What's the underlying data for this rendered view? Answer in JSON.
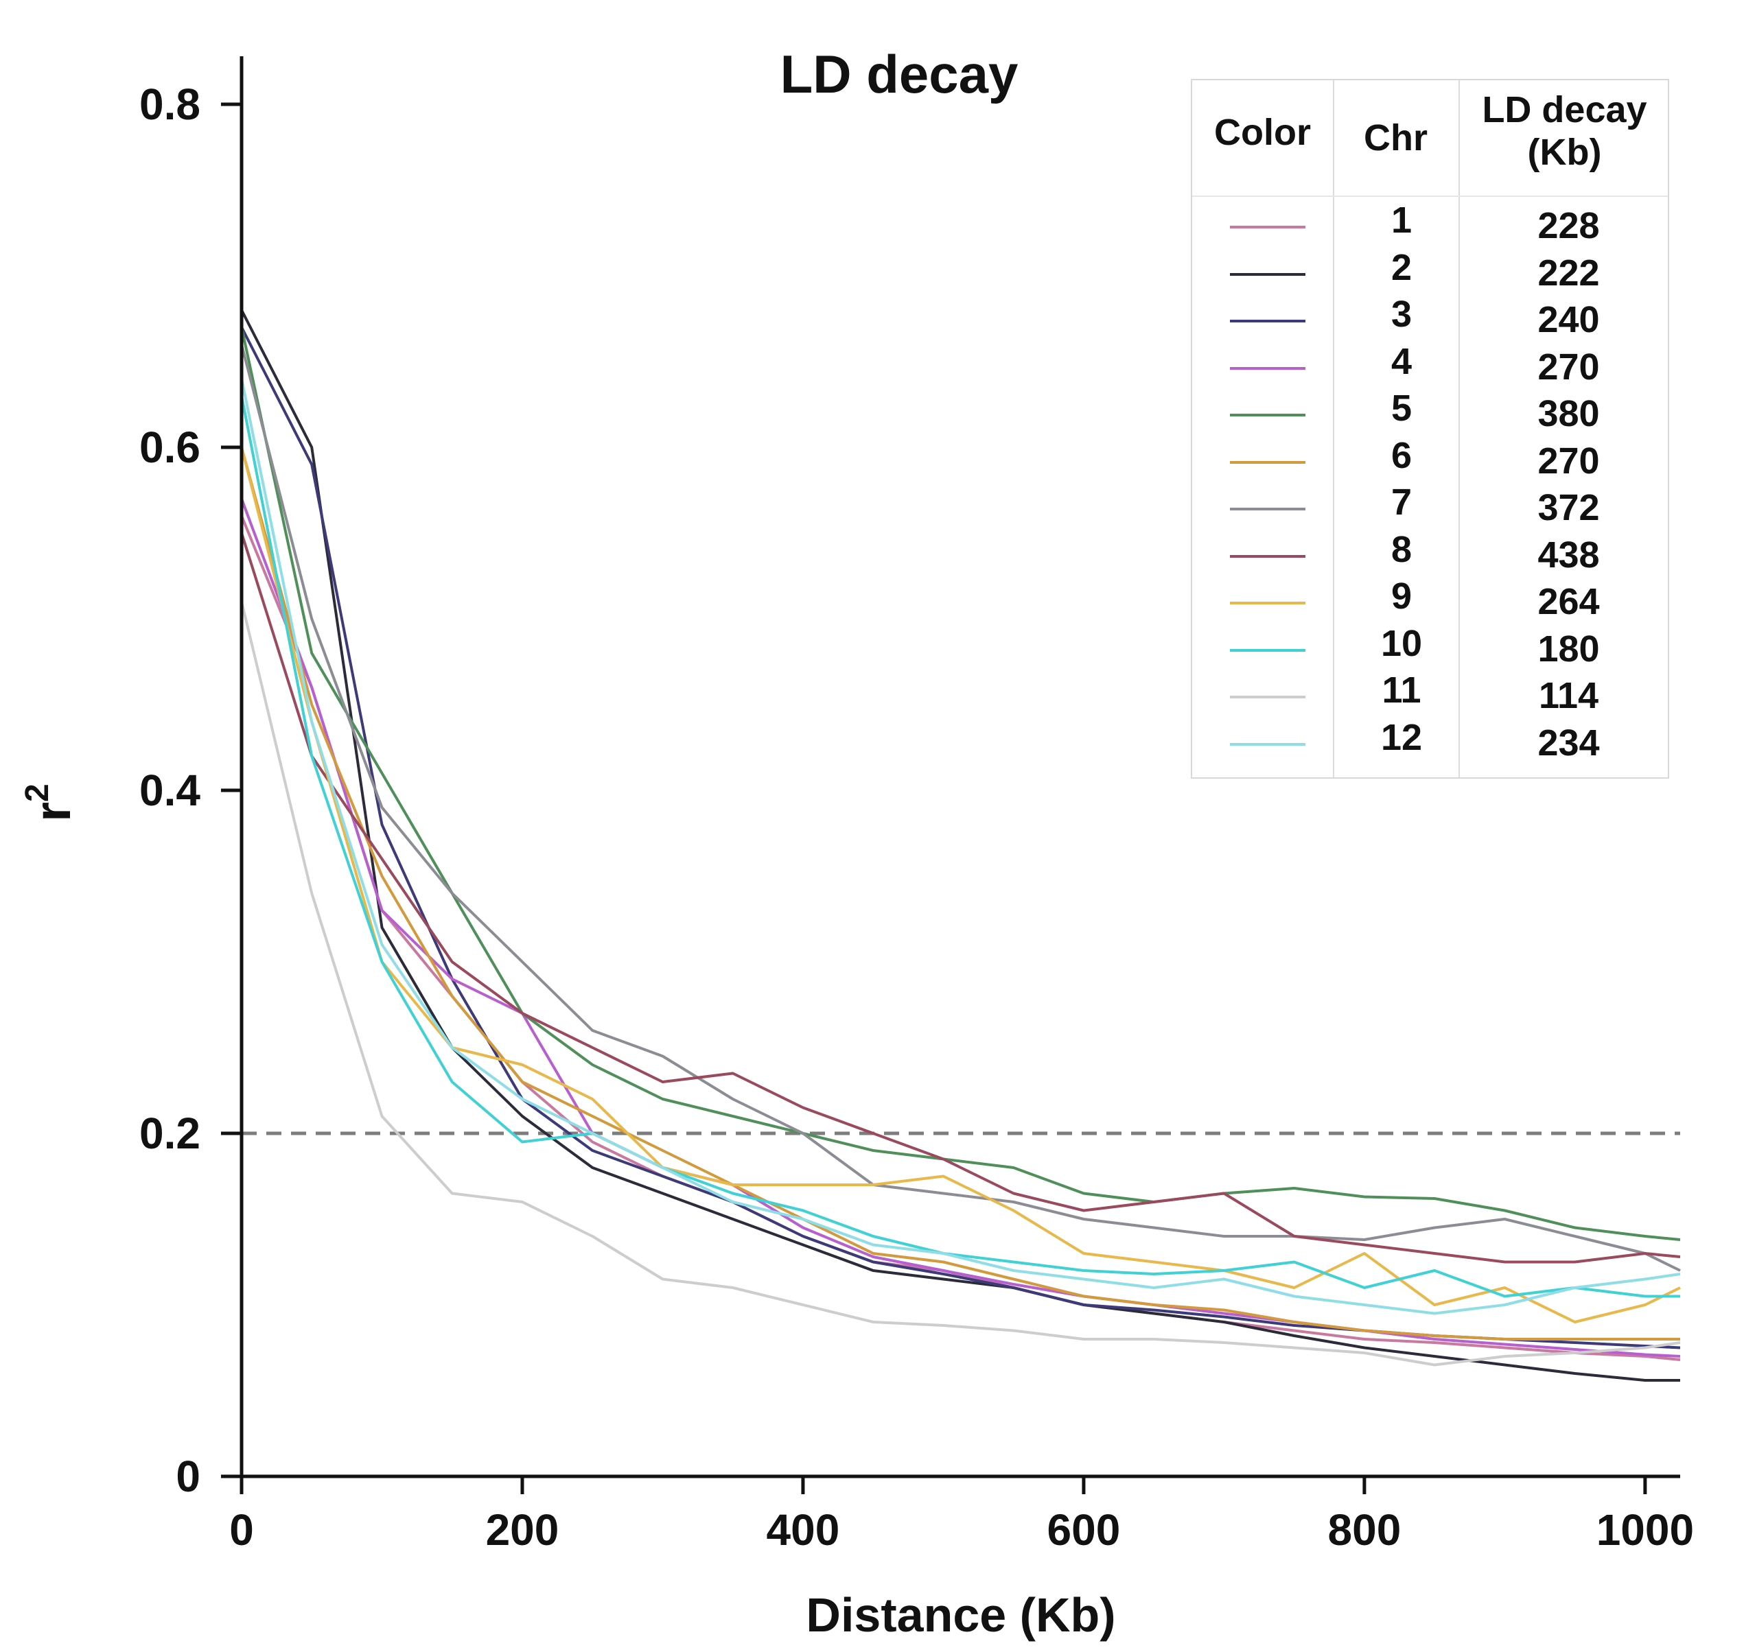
{
  "chart_data": {
    "type": "line",
    "title": "LD decay",
    "xlabel": "Distance (Kb)",
    "ylabel": "r",
    "ylabel_superscript": "2",
    "xlim": [
      0,
      1025
    ],
    "ylim": [
      0,
      0.8
    ],
    "x_ticks": [
      "0",
      "200",
      "400",
      "600",
      "800",
      "1000"
    ],
    "y_ticks": [
      "0",
      "0.2",
      "0.4",
      "0.6",
      "0.8"
    ],
    "threshold": 0.2,
    "x": [
      0,
      50,
      100,
      150,
      200,
      250,
      300,
      350,
      400,
      450,
      500,
      550,
      600,
      650,
      700,
      750,
      800,
      850,
      900,
      950,
      1000,
      1025
    ],
    "series": [
      {
        "name": "1",
        "color": "#c9799f",
        "values": [
          0.56,
          0.46,
          0.33,
          0.28,
          0.23,
          0.195,
          0.175,
          0.16,
          0.14,
          0.125,
          0.12,
          0.11,
          0.1,
          0.095,
          0.09,
          0.085,
          0.08,
          0.078,
          0.075,
          0.072,
          0.07,
          0.068
        ]
      },
      {
        "name": "2",
        "color": "#2b2b3a",
        "values": [
          0.68,
          0.6,
          0.32,
          0.25,
          0.21,
          0.18,
          0.165,
          0.15,
          0.135,
          0.12,
          0.115,
          0.11,
          0.1,
          0.095,
          0.09,
          0.082,
          0.075,
          0.07,
          0.065,
          0.06,
          0.056,
          0.056
        ]
      },
      {
        "name": "3",
        "color": "#3d3a7a",
        "values": [
          0.67,
          0.59,
          0.38,
          0.29,
          0.22,
          0.19,
          0.175,
          0.16,
          0.14,
          0.125,
          0.118,
          0.11,
          0.1,
          0.097,
          0.093,
          0.088,
          0.085,
          0.082,
          0.08,
          0.078,
          0.076,
          0.075
        ]
      },
      {
        "name": "4",
        "color": "#b85fd0",
        "values": [
          0.57,
          0.46,
          0.33,
          0.29,
          0.27,
          0.2,
          0.18,
          0.17,
          0.145,
          0.128,
          0.12,
          0.112,
          0.105,
          0.1,
          0.095,
          0.09,
          0.085,
          0.08,
          0.077,
          0.074,
          0.071,
          0.07
        ]
      },
      {
        "name": "5",
        "color": "#4f8f5a",
        "values": [
          0.67,
          0.48,
          0.41,
          0.34,
          0.27,
          0.24,
          0.22,
          0.21,
          0.2,
          0.19,
          0.185,
          0.18,
          0.165,
          0.16,
          0.165,
          0.168,
          0.163,
          0.162,
          0.155,
          0.145,
          0.14,
          0.138
        ]
      },
      {
        "name": "6",
        "color": "#d29a3c",
        "values": [
          0.6,
          0.45,
          0.35,
          0.28,
          0.23,
          0.21,
          0.19,
          0.17,
          0.15,
          0.13,
          0.125,
          0.115,
          0.105,
          0.1,
          0.097,
          0.09,
          0.085,
          0.082,
          0.08,
          0.08,
          0.08,
          0.08
        ]
      },
      {
        "name": "7",
        "color": "#8c8c94",
        "values": [
          0.66,
          0.5,
          0.39,
          0.34,
          0.3,
          0.26,
          0.245,
          0.22,
          0.2,
          0.17,
          0.165,
          0.16,
          0.15,
          0.145,
          0.14,
          0.14,
          0.138,
          0.145,
          0.15,
          0.14,
          0.13,
          0.12
        ]
      },
      {
        "name": "8",
        "color": "#9b4a5e",
        "values": [
          0.55,
          0.42,
          0.36,
          0.3,
          0.27,
          0.25,
          0.23,
          0.235,
          0.215,
          0.2,
          0.185,
          0.165,
          0.155,
          0.16,
          0.165,
          0.14,
          0.135,
          0.13,
          0.125,
          0.125,
          0.13,
          0.128
        ]
      },
      {
        "name": "9",
        "color": "#e8b84a",
        "values": [
          0.6,
          0.44,
          0.3,
          0.25,
          0.24,
          0.22,
          0.18,
          0.17,
          0.17,
          0.17,
          0.175,
          0.155,
          0.13,
          0.125,
          0.12,
          0.11,
          0.13,
          0.1,
          0.11,
          0.09,
          0.1,
          0.11
        ]
      },
      {
        "name": "10",
        "color": "#3fd1d6",
        "values": [
          0.63,
          0.42,
          0.3,
          0.23,
          0.195,
          0.2,
          0.18,
          0.165,
          0.155,
          0.14,
          0.13,
          0.125,
          0.12,
          0.118,
          0.12,
          0.125,
          0.11,
          0.12,
          0.105,
          0.11,
          0.105,
          0.105
        ]
      },
      {
        "name": "11",
        "color": "#cdcdcd",
        "values": [
          0.51,
          0.34,
          0.21,
          0.165,
          0.16,
          0.14,
          0.115,
          0.11,
          0.1,
          0.09,
          0.088,
          0.085,
          0.08,
          0.08,
          0.078,
          0.075,
          0.072,
          0.065,
          0.07,
          0.072,
          0.075,
          0.078
        ]
      },
      {
        "name": "12",
        "color": "#8fdde6",
        "values": [
          0.64,
          0.44,
          0.31,
          0.25,
          0.22,
          0.2,
          0.18,
          0.16,
          0.15,
          0.135,
          0.13,
          0.12,
          0.115,
          0.11,
          0.115,
          0.105,
          0.1,
          0.095,
          0.1,
          0.11,
          0.115,
          0.118
        ]
      }
    ],
    "legend": {
      "headers": {
        "color": "Color",
        "chr": "Chr",
        "decay_line1": "LD decay",
        "decay_line2": "(Kb)"
      },
      "rows": [
        {
          "chr": "1",
          "decay": "228"
        },
        {
          "chr": "2",
          "decay": "222"
        },
        {
          "chr": "3",
          "decay": "240"
        },
        {
          "chr": "4",
          "decay": "270"
        },
        {
          "chr": "5",
          "decay": "380"
        },
        {
          "chr": "6",
          "decay": "270"
        },
        {
          "chr": "7",
          "decay": "372"
        },
        {
          "chr": "8",
          "decay": "438"
        },
        {
          "chr": "9",
          "decay": "264"
        },
        {
          "chr": "10",
          "decay": "180"
        },
        {
          "chr": "11",
          "decay": "114"
        },
        {
          "chr": "12",
          "decay": "234"
        }
      ],
      "position": "top-right"
    }
  }
}
